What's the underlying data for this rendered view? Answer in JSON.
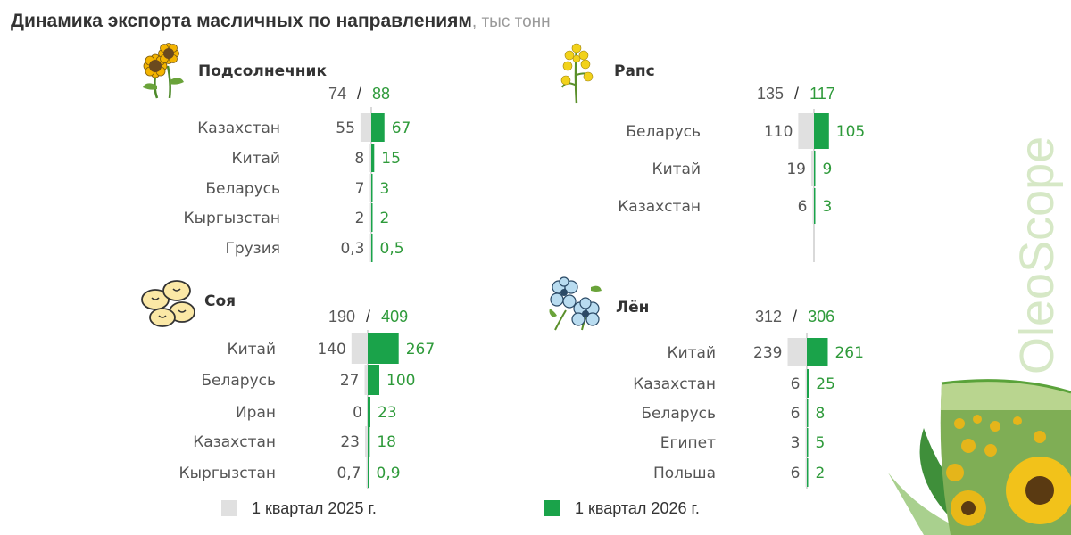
{
  "title": "Динамика экспорта масличных по направлениям",
  "title_unit": ", тыс тонн",
  "brand": "OleoScope",
  "colors": {
    "y2025": "#e0e0e0",
    "y2026": "#1aa34a",
    "axis": "#d9d9d9",
    "label": "#555555",
    "green_text": "#2e9a3a"
  },
  "legend": [
    {
      "label": "1 квартал 2025 г.",
      "color": "#e0e0e0"
    },
    {
      "label": "1 квартал 2026 г.",
      "color": "#1aa34a"
    }
  ],
  "chart_data": [
    {
      "type": "bar",
      "name": "Подсолнечник",
      "icon": "sunflower-icon",
      "total_2025": "74",
      "total_2026": "88",
      "categories": [
        "Казахстан",
        "Китай",
        "Беларусь",
        "Кыргызстан",
        "Грузия"
      ],
      "series": [
        {
          "name": "1 квартал 2025 г.",
          "values": [
            55,
            8,
            7,
            2,
            0.3
          ],
          "labels": [
            "55",
            "8",
            "7",
            "2",
            "0,3"
          ]
        },
        {
          "name": "1 квартал 2026 г.",
          "values": [
            67,
            15,
            3,
            2,
            0.5
          ],
          "labels": [
            "67",
            "15",
            "3",
            "2",
            "0,5"
          ]
        }
      ]
    },
    {
      "type": "bar",
      "name": "Рапс",
      "icon": "rapeseed-icon",
      "total_2025": "135",
      "total_2026": "117",
      "categories": [
        "Беларусь",
        "Китай",
        "Казахстан"
      ],
      "series": [
        {
          "name": "1 квартал 2025 г.",
          "values": [
            110,
            19,
            6
          ],
          "labels": [
            "110",
            "19",
            "6"
          ]
        },
        {
          "name": "1 квартал 2026 г.",
          "values": [
            105,
            9,
            3
          ],
          "labels": [
            "105",
            "9",
            "3"
          ]
        }
      ]
    },
    {
      "type": "bar",
      "name": "Соя",
      "icon": "soybean-icon",
      "total_2025": "190",
      "total_2026": "409",
      "categories": [
        "Китай",
        "Беларусь",
        "Иран",
        "Казахстан",
        "Кыргызстан"
      ],
      "series": [
        {
          "name": "1 квартал 2025 г.",
          "values": [
            140,
            27,
            0,
            23,
            0.7
          ],
          "labels": [
            "140",
            "27",
            "0",
            "23",
            "0,7"
          ]
        },
        {
          "name": "1 квартал 2026 г.",
          "values": [
            267,
            100,
            23,
            18,
            0.9
          ],
          "labels": [
            "267",
            "100",
            "23",
            "18",
            "0,9"
          ]
        }
      ]
    },
    {
      "type": "bar",
      "name": "Лён",
      "icon": "flax-flower-icon",
      "total_2025": "312",
      "total_2026": "306",
      "categories": [
        "Китай",
        "Казахстан",
        "Беларусь",
        "Египет",
        "Польша"
      ],
      "series": [
        {
          "name": "1 квартал 2025 г.",
          "values": [
            239,
            6,
            6,
            3,
            6
          ],
          "labels": [
            "239",
            "6",
            "6",
            "3",
            "6"
          ]
        },
        {
          "name": "1 квартал 2026 г.",
          "values": [
            261,
            25,
            8,
            5,
            2
          ],
          "labels": [
            "261",
            "25",
            "8",
            "5",
            "2"
          ]
        }
      ]
    }
  ]
}
